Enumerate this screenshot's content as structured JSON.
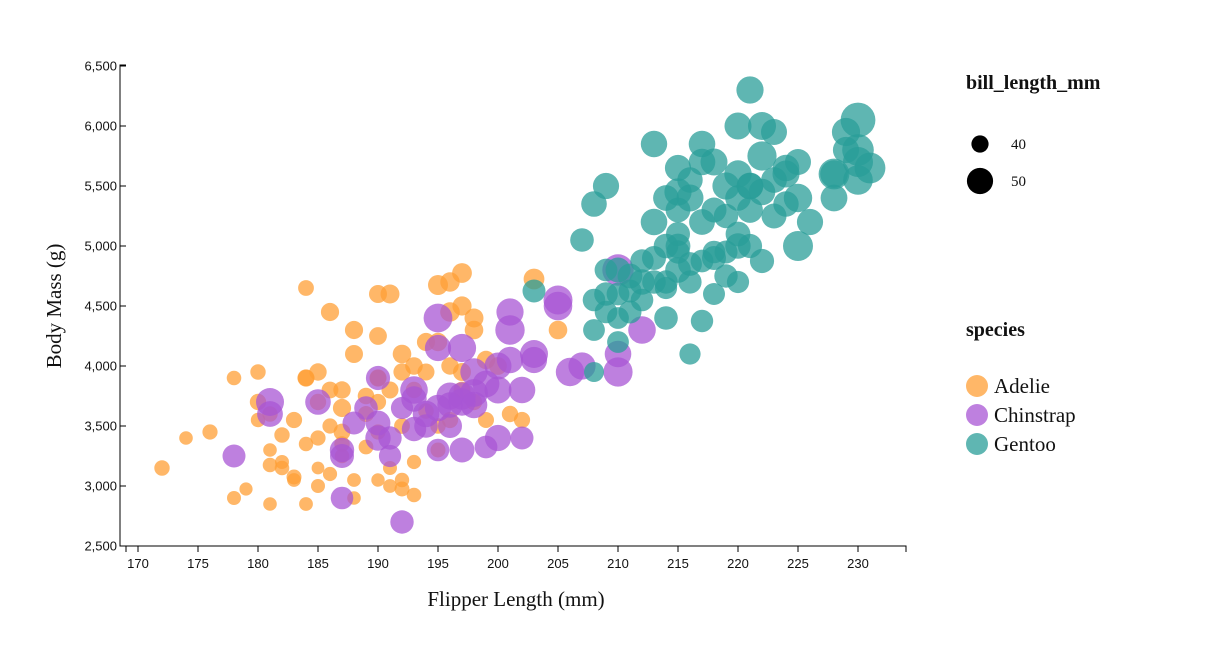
{
  "chart_data": {
    "type": "scatter",
    "xlabel": "Flipper Length (mm)",
    "ylabel": "Body Mass (g)",
    "xlim": [
      169,
      234
    ],
    "ylim": [
      2500,
      6500
    ],
    "x_ticks": [
      170,
      175,
      180,
      185,
      190,
      195,
      200,
      205,
      210,
      215,
      220,
      225,
      230
    ],
    "y_ticks": [
      2500,
      3000,
      3500,
      4000,
      4500,
      5000,
      5500,
      6000,
      6500
    ],
    "x_tick_labels": [
      "170",
      "175",
      "180",
      "185",
      "190",
      "195",
      "200",
      "205",
      "210",
      "215",
      "220",
      "225",
      "230"
    ],
    "y_tick_labels": [
      "2,500",
      "3,000",
      "3,500",
      "4,000",
      "4,500",
      "5,000",
      "5,500",
      "6,000",
      "6,500"
    ],
    "grid": false,
    "size_legend": {
      "title": "bill_length_mm",
      "entries": [
        {
          "label": "40",
          "value": 40
        },
        {
          "label": "50",
          "value": 50
        }
      ]
    },
    "color_legend": {
      "title": "species",
      "placement": "right"
    },
    "series": [
      {
        "name": "Adelie",
        "color": "#ff9f36",
        "points": [
          [
            172,
            3150,
            37.9
          ],
          [
            174,
            3400,
            36.0
          ],
          [
            176,
            3450,
            37.8
          ],
          [
            178,
            3900,
            37.2
          ],
          [
            178,
            2900,
            36.5
          ],
          [
            179,
            2975,
            35.5
          ],
          [
            180,
            3950,
            38.0
          ],
          [
            180,
            3700,
            39.0
          ],
          [
            180,
            3550,
            36.9
          ],
          [
            181,
            3300,
            36.0
          ],
          [
            181,
            3175,
            37.0
          ],
          [
            181,
            2850,
            35.9
          ],
          [
            182,
            3425,
            38.0
          ],
          [
            182,
            3200,
            36.5
          ],
          [
            182,
            3150,
            37.0
          ],
          [
            183,
            3075,
            37.5
          ],
          [
            183,
            3550,
            38.9
          ],
          [
            184,
            3900,
            39.2
          ],
          [
            184,
            4650,
            38.5
          ],
          [
            184,
            3900,
            40.0
          ],
          [
            184,
            3350,
            36.8
          ],
          [
            184,
            2850,
            36.2
          ],
          [
            185,
            3700,
            39.1
          ],
          [
            185,
            3400,
            37.7
          ],
          [
            185,
            3150,
            35.2
          ],
          [
            185,
            3000,
            36.5
          ],
          [
            185,
            3950,
            40.2
          ],
          [
            186,
            4450,
            41.0
          ],
          [
            186,
            3800,
            39.5
          ],
          [
            186,
            3100,
            36.6
          ],
          [
            186,
            3500,
            37.8
          ],
          [
            187,
            3800,
            40.3
          ],
          [
            187,
            3650,
            41.1
          ],
          [
            187,
            3450,
            39.6
          ],
          [
            187,
            3250,
            37.0
          ],
          [
            188,
            4300,
            41.1
          ],
          [
            188,
            4100,
            40.9
          ],
          [
            188,
            3050,
            36.2
          ],
          [
            188,
            2900,
            36.0
          ],
          [
            189,
            3600,
            38.6
          ],
          [
            189,
            3325,
            37.3
          ],
          [
            190,
            4250,
            40.6
          ],
          [
            190,
            3900,
            39.0
          ],
          [
            190,
            3700,
            38.8
          ],
          [
            190,
            3450,
            37.7
          ],
          [
            190,
            3050,
            35.7
          ],
          [
            190,
            4600,
            40.9
          ],
          [
            191,
            4600,
            42.0
          ],
          [
            191,
            3800,
            39.8
          ],
          [
            191,
            3150,
            36.4
          ],
          [
            191,
            3000,
            36.3
          ],
          [
            192,
            4100,
            41.5
          ],
          [
            192,
            3950,
            40.1
          ],
          [
            192,
            3050,
            36.9
          ],
          [
            192,
            2975,
            37.6
          ],
          [
            193,
            4000,
            40.5
          ],
          [
            193,
            3800,
            39.1
          ],
          [
            193,
            3200,
            36.7
          ],
          [
            193,
            2925,
            37.2
          ],
          [
            194,
            4200,
            41.1
          ],
          [
            194,
            3950,
            39.7
          ],
          [
            194,
            3625,
            38.2
          ],
          [
            195,
            4675,
            43.2
          ],
          [
            195,
            4200,
            41.4
          ],
          [
            195,
            3500,
            38.1
          ],
          [
            195,
            3300,
            37.6
          ],
          [
            196,
            4700,
            42.5
          ],
          [
            196,
            4000,
            40.2
          ],
          [
            196,
            3550,
            38.8
          ],
          [
            196,
            4450,
            42.7
          ],
          [
            197,
            4775,
            43.0
          ],
          [
            197,
            4500,
            42.2
          ],
          [
            197,
            3800,
            39.6
          ],
          [
            197,
            3950,
            40.8
          ],
          [
            198,
            4300,
            41.6
          ],
          [
            198,
            3700,
            39.0
          ],
          [
            198,
            4400,
            42.0
          ],
          [
            199,
            4050,
            41.3
          ],
          [
            199,
            3550,
            38.6
          ],
          [
            200,
            4000,
            40.6
          ],
          [
            201,
            3600,
            39.2
          ],
          [
            202,
            3550,
            38.9
          ],
          [
            203,
            4725,
            44.1
          ],
          [
            205,
            4300,
            41.6
          ],
          [
            190,
            3900,
            40.0
          ],
          [
            187,
            3350,
            37.9
          ],
          [
            183,
            3050,
            36.2
          ],
          [
            181,
            3600,
            38.1
          ],
          [
            189,
            3750,
            39.3
          ],
          [
            192,
            3500,
            38.5
          ]
        ]
      },
      {
        "name": "Chinstrap",
        "color": "#a855d4",
        "points": [
          [
            178,
            3250,
            46.4
          ],
          [
            181,
            3700,
            52.0
          ],
          [
            181,
            3600,
            49.5
          ],
          [
            185,
            3700,
            49.3
          ],
          [
            187,
            3300,
            48.0
          ],
          [
            187,
            3250,
            47.5
          ],
          [
            187,
            2900,
            45.9
          ],
          [
            188,
            3525,
            46.4
          ],
          [
            189,
            3650,
            47.0
          ],
          [
            190,
            3525,
            48.5
          ],
          [
            190,
            3400,
            49.0
          ],
          [
            191,
            3400,
            46.8
          ],
          [
            191,
            3250,
            45.5
          ],
          [
            192,
            2700,
            46.9
          ],
          [
            193,
            3800,
            51.5
          ],
          [
            193,
            3725,
            49.2
          ],
          [
            194,
            3600,
            50.5
          ],
          [
            195,
            4400,
            52.8
          ],
          [
            195,
            4150,
            50.0
          ],
          [
            195,
            3300,
            46.1
          ],
          [
            195,
            3650,
            50.2
          ],
          [
            196,
            3750,
            50.9
          ],
          [
            196,
            3500,
            47.6
          ],
          [
            197,
            4150,
            52.2
          ],
          [
            197,
            3700,
            51.3
          ],
          [
            197,
            3300,
            48.7
          ],
          [
            198,
            3775,
            51.7
          ],
          [
            198,
            3950,
            51.4
          ],
          [
            199,
            3850,
            50.6
          ],
          [
            199,
            3325,
            46.2
          ],
          [
            200,
            3800,
            50.8
          ],
          [
            200,
            3400,
            49.9
          ],
          [
            201,
            4450,
            51.0
          ],
          [
            201,
            4300,
            53.5
          ],
          [
            201,
            4050,
            50.3
          ],
          [
            202,
            3800,
            50.5
          ],
          [
            202,
            3400,
            46.5
          ],
          [
            203,
            4050,
            50.0
          ],
          [
            203,
            4100,
            52.0
          ],
          [
            205,
            4500,
            52.7
          ],
          [
            205,
            4550,
            53.0
          ],
          [
            206,
            3950,
            52.5
          ],
          [
            207,
            4000,
            51.0
          ],
          [
            210,
            4800,
            55.8
          ],
          [
            210,
            4100,
            50.5
          ],
          [
            210,
            3950,
            53.4
          ],
          [
            212,
            4300,
            51.5
          ],
          [
            196,
            3675,
            49.0
          ],
          [
            198,
            3675,
            50.5
          ],
          [
            192,
            3650,
            45.6
          ],
          [
            194,
            3500,
            47.2
          ],
          [
            197,
            3750,
            51.3
          ],
          [
            200,
            4000,
            50.8
          ],
          [
            190,
            3900,
            47.8
          ],
          [
            193,
            3475,
            48.1
          ]
        ]
      },
      {
        "name": "Gentoo",
        "color": "#2a9d98",
        "points": [
          [
            203,
            4625,
            46.5
          ],
          [
            207,
            5050,
            47.0
          ],
          [
            208,
            3950,
            43.2
          ],
          [
            208,
            4300,
            45.2
          ],
          [
            208,
            4550,
            46.0
          ],
          [
            208,
            5350,
            49.4
          ],
          [
            209,
            4450,
            46.1
          ],
          [
            209,
            4600,
            47.2
          ],
          [
            209,
            4800,
            46.3
          ],
          [
            209,
            5500,
            50.0
          ],
          [
            210,
            4400,
            45.1
          ],
          [
            210,
            4600,
            46.3
          ],
          [
            210,
            4800,
            48.7
          ],
          [
            210,
            4200,
            45.2
          ],
          [
            211,
            4450,
            46.5
          ],
          [
            211,
            4750,
            48.4
          ],
          [
            212,
            4700,
            49.1
          ],
          [
            212,
            4875,
            46.8
          ],
          [
            213,
            5200,
            50.5
          ],
          [
            213,
            4700,
            47.2
          ],
          [
            213,
            5850,
            50.2
          ],
          [
            213,
            4900,
            47.5
          ],
          [
            214,
            5400,
            49.6
          ],
          [
            214,
            5000,
            48.2
          ],
          [
            214,
            4700,
            46.8
          ],
          [
            214,
            4650,
            45.5
          ],
          [
            214,
            4400,
            47.0
          ],
          [
            215,
            5650,
            50.0
          ],
          [
            215,
            5000,
            48.4
          ],
          [
            215,
            4950,
            46.9
          ],
          [
            215,
            4800,
            49.3
          ],
          [
            215,
            5100,
            47.6
          ],
          [
            215,
            5300,
            48.5
          ],
          [
            216,
            5400,
            50.8
          ],
          [
            216,
            5550,
            49.0
          ],
          [
            216,
            4850,
            47.3
          ],
          [
            216,
            4700,
            46.6
          ],
          [
            216,
            4100,
            44.5
          ],
          [
            217,
            5850,
            50.4
          ],
          [
            217,
            5200,
            49.6
          ],
          [
            217,
            4875,
            46.2
          ],
          [
            217,
            4375,
            45.8
          ],
          [
            218,
            5700,
            50.8
          ],
          [
            218,
            5300,
            48.7
          ],
          [
            218,
            4900,
            47.5
          ],
          [
            218,
            4600,
            45.3
          ],
          [
            219,
            5500,
            51.1
          ],
          [
            219,
            5250,
            48.1
          ],
          [
            219,
            4950,
            46.4
          ],
          [
            219,
            4750,
            46.8
          ],
          [
            220,
            6000,
            50.8
          ],
          [
            220,
            5600,
            51.3
          ],
          [
            220,
            5400,
            49.4
          ],
          [
            220,
            5100,
            48.5
          ],
          [
            220,
            5000,
            49.1
          ],
          [
            220,
            4700,
            45.5
          ],
          [
            221,
            6300,
            51.1
          ],
          [
            221,
            5500,
            50.7
          ],
          [
            221,
            5300,
            49.6
          ],
          [
            221,
            5000,
            47.8
          ],
          [
            222,
            6000,
            52.1
          ],
          [
            222,
            5750,
            53.4
          ],
          [
            222,
            5450,
            50.5
          ],
          [
            222,
            4875,
            47.7
          ],
          [
            223,
            5950,
            49.8
          ],
          [
            223,
            5550,
            49.5
          ],
          [
            223,
            5250,
            48.6
          ],
          [
            224,
            5650,
            50.4
          ],
          [
            224,
            5350,
            49.2
          ],
          [
            225,
            5700,
            49.8
          ],
          [
            225,
            5400,
            52.5
          ],
          [
            225,
            5000,
            54.3
          ],
          [
            226,
            5200,
            50.0
          ],
          [
            228,
            5600,
            51.5
          ],
          [
            228,
            5400,
            50.7
          ],
          [
            228,
            5600,
            55.1
          ],
          [
            229,
            5800,
            50.1
          ],
          [
            229,
            5950,
            52.2
          ],
          [
            230,
            6050,
            59.6
          ],
          [
            230,
            5800,
            55.9
          ],
          [
            230,
            5700,
            54.3
          ],
          [
            230,
            5550,
            53.7
          ],
          [
            231,
            5650,
            55.1
          ],
          [
            217,
            5700,
            50.4
          ],
          [
            212,
            4550,
            46.0
          ],
          [
            221,
            5500,
            49.9
          ],
          [
            215,
            5450,
            51.1
          ],
          [
            224,
            5600,
            50.9
          ],
          [
            218,
            4950,
            45.9
          ],
          [
            211,
            4625,
            46.4
          ]
        ]
      }
    ]
  }
}
